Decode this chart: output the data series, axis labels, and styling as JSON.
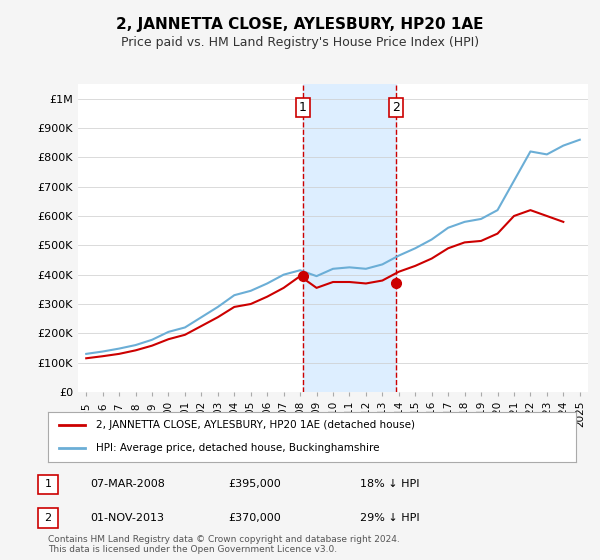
{
  "title": "2, JANNETTA CLOSE, AYLESBURY, HP20 1AE",
  "subtitle": "Price paid vs. HM Land Registry's House Price Index (HPI)",
  "footnote": "Contains HM Land Registry data © Crown copyright and database right 2024.\nThis data is licensed under the Open Government Licence v3.0.",
  "legend_line1": "2, JANNETTA CLOSE, AYLESBURY, HP20 1AE (detached house)",
  "legend_line2": "HPI: Average price, detached house, Buckinghamshire",
  "annotation1": {
    "label": "1",
    "date": "07-MAR-2008",
    "price": "£395,000",
    "note": "18% ↓ HPI"
  },
  "annotation2": {
    "label": "2",
    "date": "01-NOV-2013",
    "price": "£370,000",
    "note": "29% ↓ HPI"
  },
  "hpi_color": "#6baed6",
  "price_color": "#cc0000",
  "vline_color": "#cc0000",
  "vshade_color": "#ddeeff",
  "ylim": [
    0,
    1050000
  ],
  "yticks": [
    0,
    100000,
    200000,
    300000,
    400000,
    500000,
    600000,
    700000,
    800000,
    900000,
    1000000
  ],
  "ytick_labels": [
    "£0",
    "£100K",
    "£200K",
    "£300K",
    "£400K",
    "£500K",
    "£600K",
    "£700K",
    "£800K",
    "£900K",
    "£1M"
  ],
  "hpi_years": [
    1995,
    1996,
    1997,
    1998,
    1999,
    2000,
    2001,
    2002,
    2003,
    2004,
    2005,
    2006,
    2007,
    2008,
    2009,
    2010,
    2011,
    2012,
    2013,
    2014,
    2015,
    2016,
    2017,
    2018,
    2019,
    2020,
    2021,
    2022,
    2023,
    2024,
    2025
  ],
  "hpi_values": [
    130000,
    138000,
    148000,
    160000,
    178000,
    205000,
    220000,
    255000,
    290000,
    330000,
    345000,
    370000,
    400000,
    415000,
    395000,
    420000,
    425000,
    420000,
    435000,
    465000,
    490000,
    520000,
    560000,
    580000,
    590000,
    620000,
    720000,
    820000,
    810000,
    840000,
    860000
  ],
  "price_years": [
    1995,
    1996,
    1997,
    1998,
    1999,
    2000,
    2001,
    2002,
    2003,
    2004,
    2005,
    2006,
    2007,
    2008,
    2009,
    2010,
    2011,
    2012,
    2013,
    2014,
    2015,
    2016,
    2017,
    2018,
    2019,
    2020,
    2021,
    2022,
    2023,
    2024
  ],
  "price_values": [
    115000,
    122000,
    130000,
    142000,
    158000,
    180000,
    195000,
    225000,
    255000,
    290000,
    300000,
    325000,
    355000,
    395000,
    355000,
    375000,
    375000,
    370000,
    380000,
    410000,
    430000,
    455000,
    490000,
    510000,
    515000,
    540000,
    600000,
    620000,
    600000,
    580000
  ],
  "vline1_x": 2008.18,
  "vline2_x": 2013.83,
  "dot1_x": 2008.18,
  "dot1_y": 395000,
  "dot2_x": 2013.83,
  "dot2_y": 370000,
  "xtick_years": [
    1995,
    1996,
    1997,
    1998,
    1999,
    2000,
    2001,
    2002,
    2003,
    2004,
    2005,
    2006,
    2007,
    2008,
    2009,
    2010,
    2011,
    2012,
    2013,
    2014,
    2015,
    2016,
    2017,
    2018,
    2019,
    2020,
    2021,
    2022,
    2023,
    2024,
    2025
  ],
  "background_color": "#f5f5f5",
  "plot_bg_color": "#ffffff"
}
